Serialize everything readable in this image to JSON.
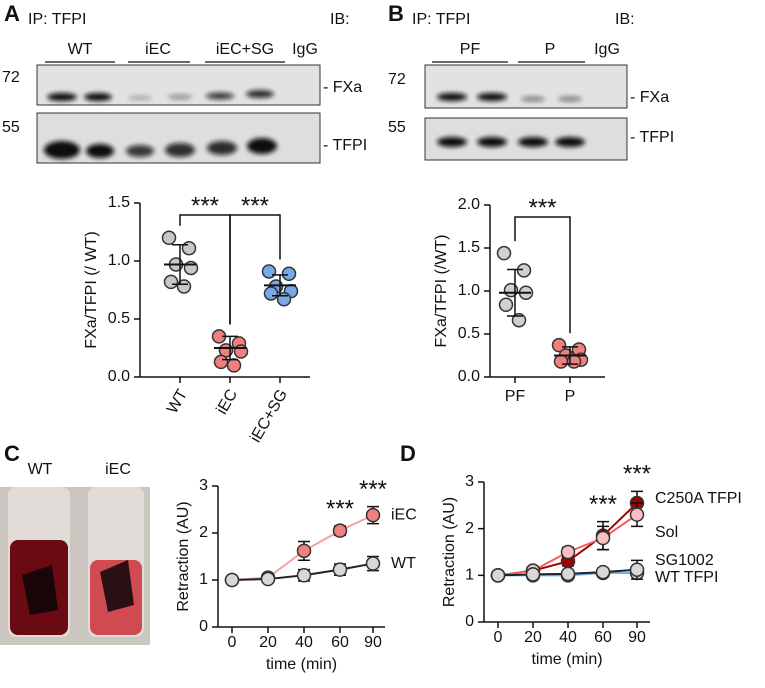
{
  "panel_labels": [
    "A",
    "B",
    "C",
    "D"
  ],
  "blots": [
    {
      "ip": "IP: TFPI",
      "ib": "IB:",
      "lanes": [
        "WT",
        "iEC",
        "iEC+SG",
        "IgG"
      ],
      "markers": [
        "72",
        "55"
      ],
      "bands": [
        "- FXa",
        "- TFPI"
      ]
    },
    {
      "ip": "IP: TFPI",
      "ib": "IB:",
      "lanes": [
        "PF",
        "P",
        "IgG"
      ],
      "markers": [
        "72",
        "55"
      ],
      "bands": [
        "- FXa",
        "- TFPI"
      ]
    }
  ],
  "photo": {
    "labels": [
      "WT",
      "iEC"
    ]
  },
  "chart_data": [
    {
      "type": "dotplot",
      "y_label": "FXa/TFPI (/ WT)",
      "categories": [
        "WT",
        "iEC",
        "iEC+SG"
      ],
      "values": [
        [
          1.2,
          1.11,
          0.97,
          0.94,
          0.82,
          0.78
        ],
        [
          0.35,
          0.29,
          0.23,
          0.22,
          0.13,
          0.1
        ],
        [
          0.91,
          0.89,
          0.78,
          0.74,
          0.72,
          0.67
        ]
      ],
      "means": [
        0.97,
        0.25,
        0.79
      ],
      "sds": [
        0.17,
        0.1,
        0.09
      ],
      "colors": [
        "#c8c8c8",
        "#f08080",
        "#7aa7e6"
      ],
      "ylim": [
        0,
        1.5
      ],
      "yticks": [
        {
          "value": 0,
          "label": "0.0"
        },
        {
          "value": 0.5,
          "label": "0.5"
        },
        {
          "value": 1,
          "label": "1.0"
        },
        {
          "value": 1.5,
          "label": "1.5"
        }
      ],
      "annotations": [
        {
          "text": "***",
          "between": [
            0,
            1
          ]
        },
        {
          "text": "***",
          "between": [
            1,
            2
          ]
        }
      ]
    },
    {
      "type": "dotplot",
      "y_label": "FXa/TFPI (/WT)",
      "categories": [
        "PF",
        "P"
      ],
      "values": [
        [
          1.44,
          1.24,
          1.01,
          0.98,
          0.84,
          0.66
        ],
        [
          0.37,
          0.32,
          0.25,
          0.2,
          0.18,
          0.18
        ]
      ],
      "means": [
        0.98,
        0.25
      ],
      "sds": [
        0.27,
        0.1
      ],
      "colors": [
        "#d0d0d0",
        "#f08080"
      ],
      "ylim": [
        0,
        2
      ],
      "yticks": [
        {
          "value": 0,
          "label": "0.0"
        },
        {
          "value": 0.5,
          "label": "0.5"
        },
        {
          "value": 1,
          "label": "1.0"
        },
        {
          "value": 1.5,
          "label": "1.5"
        },
        {
          "value": 2,
          "label": "2.0"
        }
      ],
      "annotations": [
        {
          "text": "***",
          "between": [
            0,
            1
          ]
        }
      ]
    },
    {
      "type": "line",
      "y_label": "Retraction (AU)",
      "x_label": "time (min)",
      "categories": [
        "0",
        "20",
        "40",
        "60",
        "90"
      ],
      "ylim": [
        0,
        3
      ],
      "yticks": [
        0,
        1,
        2,
        3
      ],
      "legend_colored": false,
      "series": [
        {
          "name": "iEC",
          "color": "#f5a0a0",
          "marker_color": "#f08080",
          "values": [
            1,
            1.05,
            1.62,
            2.05,
            2.38
          ],
          "errors": [
            0.05,
            0.05,
            0.2,
            0.1,
            0.18
          ]
        },
        {
          "name": "WT",
          "color": "#222222",
          "marker_color": "#d8d8d8",
          "values": [
            1,
            1.02,
            1.1,
            1.22,
            1.35
          ],
          "errors": [
            0.05,
            0.05,
            0.12,
            0.12,
            0.15
          ]
        }
      ],
      "annotations": [
        {
          "text": "***",
          "at": 3
        },
        {
          "text": "***",
          "at": 4
        }
      ]
    },
    {
      "type": "line",
      "y_label": "Retraction (AU)",
      "x_label": "time (min)",
      "categories": [
        "0",
        "20",
        "40",
        "60",
        "90"
      ],
      "ylim": [
        0,
        3
      ],
      "yticks": [
        0,
        1,
        2,
        3
      ],
      "legend_colored": true,
      "series": [
        {
          "name": "C250A TFPI",
          "color": "#a00000",
          "marker_color": "#a00000",
          "values": [
            1,
            1.1,
            1.3,
            1.85,
            2.55
          ],
          "errors": [
            0.02,
            0.05,
            0.1,
            0.3,
            0.25
          ]
        },
        {
          "name": "Sol",
          "color": "#f06060",
          "marker_color": "#f8c0c0",
          "values": [
            1,
            1.1,
            1.5,
            1.8,
            2.3
          ],
          "errors": [
            0.02,
            0.05,
            0.1,
            0.25,
            0.25
          ]
        },
        {
          "name": "SG1002",
          "color": "#7ab0ea",
          "marker_color": "#d8d8d8",
          "values": [
            1,
            1,
            1,
            1.05,
            1.05
          ],
          "errors": [
            0.02,
            0.03,
            0.05,
            0.05,
            0.05
          ]
        },
        {
          "name": "WT TFPI",
          "color": "#222222",
          "marker_color": "#d8d8d8",
          "values": [
            1,
            1.02,
            1.03,
            1.07,
            1.12
          ],
          "errors": [
            0.02,
            0.03,
            0.05,
            0.08,
            0.2
          ]
        }
      ],
      "annotations": [
        {
          "text": "***",
          "at": 3
        },
        {
          "text": "***",
          "at": 4
        }
      ]
    }
  ]
}
